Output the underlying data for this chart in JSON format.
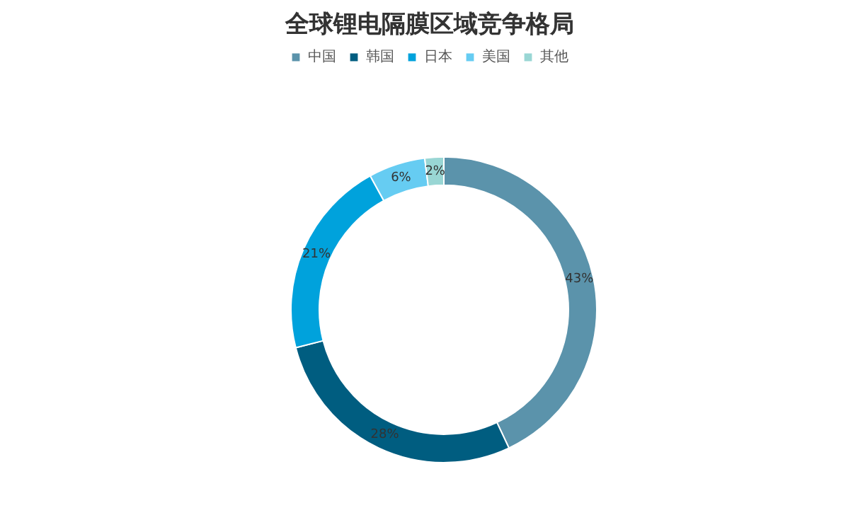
{
  "chart_data": {
    "type": "donut",
    "title": "全球锂电隔膜区域竞争格局",
    "categories": [
      "中国",
      "韩国",
      "日本",
      "美国",
      "其他"
    ],
    "values": [
      43,
      28,
      21,
      6,
      2
    ],
    "colors": [
      "#5b93ab",
      "#005d80",
      "#00a2dc",
      "#66ccf2",
      "#99d6d4"
    ],
    "value_labels": [
      "43%",
      "28%",
      "21%",
      "6%",
      "2%"
    ],
    "legend": "top"
  }
}
